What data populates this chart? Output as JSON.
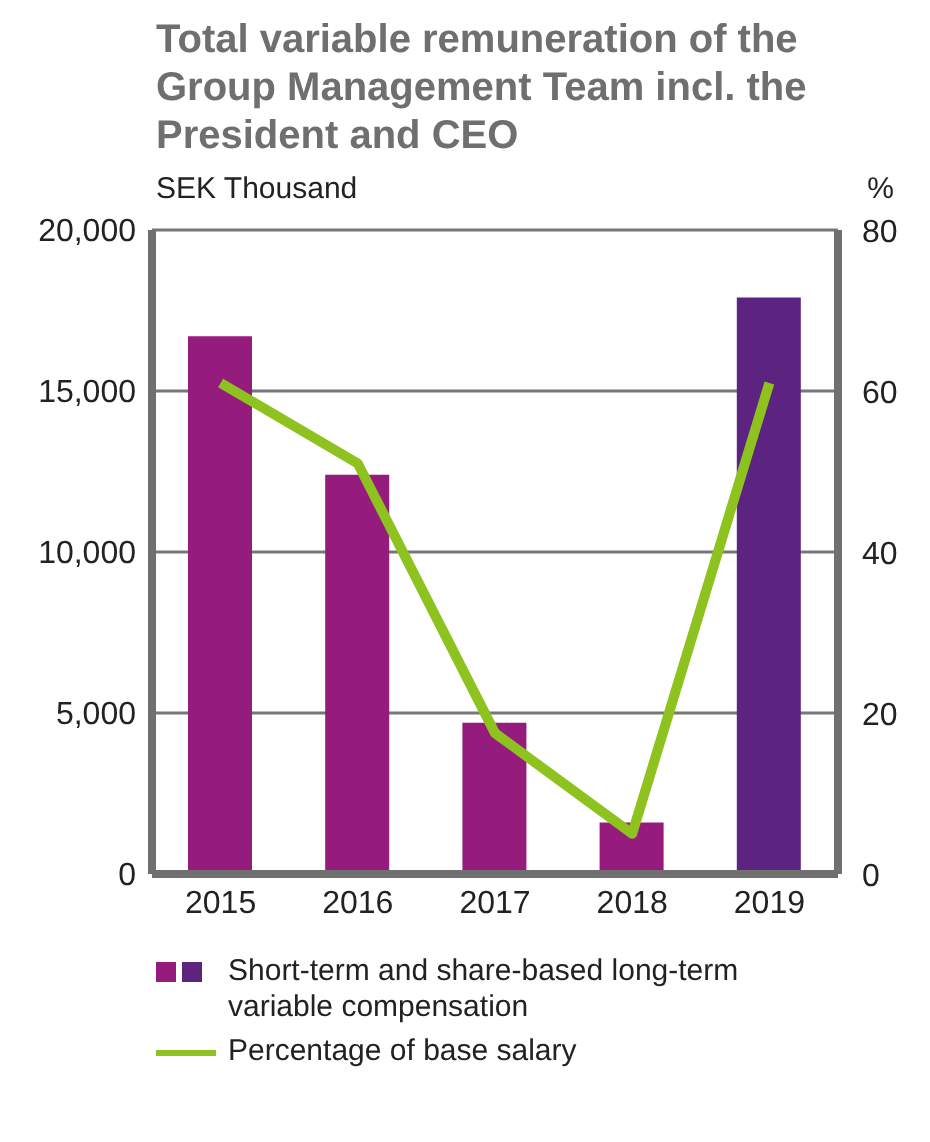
{
  "chart_data": {
    "type": "bar",
    "title": "Total variable remuneration of the Group Management Team incl. the President and CEO",
    "ylabel": "SEK Thousand",
    "y2label": "%",
    "categories": [
      "2015",
      "2016",
      "2017",
      "2018",
      "2019"
    ],
    "series": [
      {
        "name": "Short-term and share-based long-term variable compensation",
        "colors": [
          "#951b7d",
          "#951b7d",
          "#951b7d",
          "#951b7d",
          "#5c2380"
        ],
        "values": [
          16700,
          12400,
          4700,
          1600,
          17900
        ]
      },
      {
        "name": "Percentage of base salary",
        "type": "line",
        "axis": "y2",
        "color": "#8dc21f",
        "values": [
          61,
          51,
          17.5,
          5,
          61
        ]
      }
    ],
    "ylim": [
      0,
      20000
    ],
    "yticks": [
      {
        "value": 0,
        "label": "0"
      },
      {
        "value": 5000,
        "label": "5,000"
      },
      {
        "value": 10000,
        "label": "10,000"
      },
      {
        "value": 15000,
        "label": "15,000"
      },
      {
        "value": 20000,
        "label": "20,000"
      }
    ],
    "y2lim": [
      0,
      80
    ],
    "y2ticks": [
      0,
      20,
      40,
      60,
      80
    ],
    "grid": "y",
    "legend": "bottom",
    "marker": "none"
  }
}
